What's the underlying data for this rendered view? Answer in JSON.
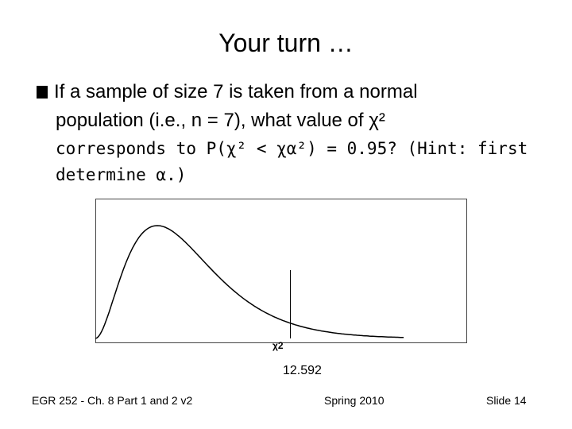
{
  "slide": {
    "title": "Your turn …",
    "bullet_line1": "If a sample of size 7 is taken from a normal",
    "bullet_line2": "population (i.e., n = 7), what value of χ²",
    "bullet_line3": "corresponds to P(χ² < χα²) = 0.95? (Hint: first",
    "bullet_line4": "determine α.)"
  },
  "chart_data": {
    "type": "area",
    "distribution": "chi-square",
    "xlabel": "χ2",
    "marker_value": 12.592,
    "marker_label": "12.592",
    "line_color": "#000000",
    "background": "#ffffff"
  },
  "footer": {
    "course": "EGR 252 - Ch. 8 Part 1 and 2 v2",
    "term": "Spring 2010",
    "slide_number": "Slide 14"
  }
}
